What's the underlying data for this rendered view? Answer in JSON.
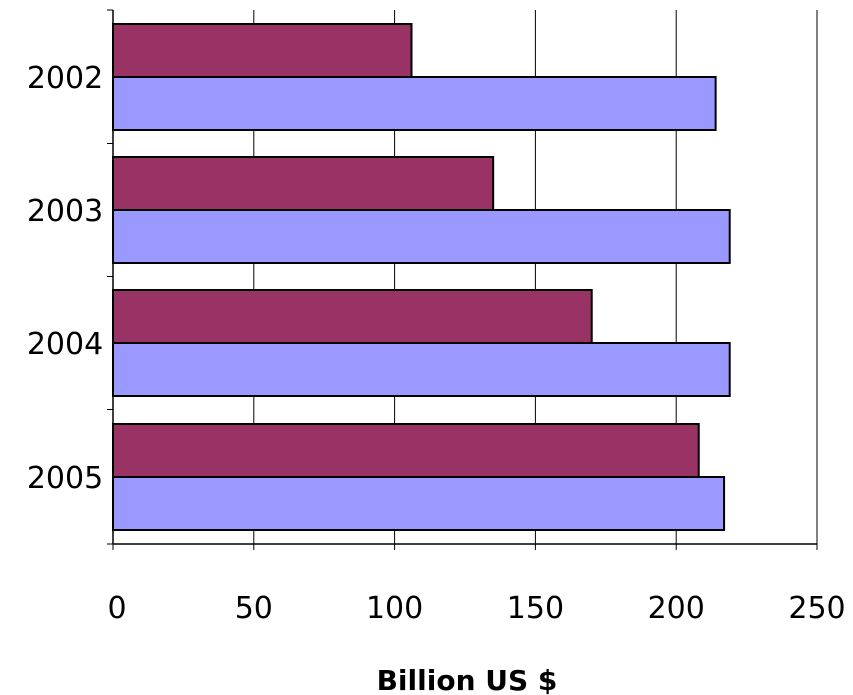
{
  "chart_data": {
    "type": "bar",
    "orientation": "horizontal",
    "categories": [
      "2002",
      "2003",
      "2004",
      "2005"
    ],
    "series": [
      {
        "values": [
          106,
          135,
          170,
          208
        ],
        "color": "#993366"
      },
      {
        "values": [
          214,
          219,
          219,
          217
        ],
        "color": "#9999ff"
      }
    ],
    "xlabel": "Billion US $",
    "xlim": [
      0,
      250
    ],
    "x_ticks": [
      0,
      50,
      100,
      150,
      200,
      250
    ],
    "grid": "vertical",
    "legend": "none"
  }
}
